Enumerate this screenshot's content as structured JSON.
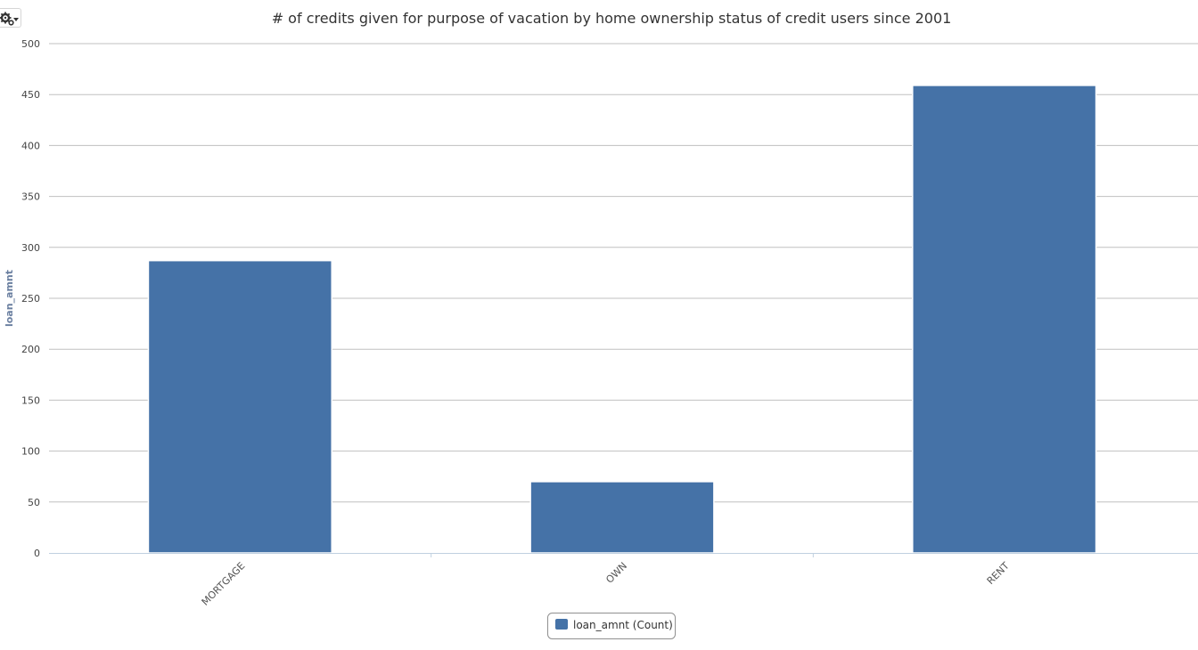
{
  "toolbar": {
    "settings_icon": "gear-icon",
    "dropdown_icon": "caret-down-icon"
  },
  "chart_data": {
    "type": "bar",
    "title": "# of credits given for purpose of vacation by home ownership status of credit users since 2001",
    "xlabel": "",
    "ylabel": "loan_amnt",
    "categories": [
      "MORTGAGE",
      "OWN",
      "RENT"
    ],
    "series": [
      {
        "name": "loan_amnt (Count)",
        "values": [
          287,
          70,
          459
        ],
        "color": "#4572a7"
      }
    ],
    "ylim": [
      0,
      500
    ],
    "yticks": [
      0,
      50,
      100,
      150,
      200,
      250,
      300,
      350,
      400,
      450,
      500
    ],
    "grid": true,
    "legend": "bottom-center"
  }
}
